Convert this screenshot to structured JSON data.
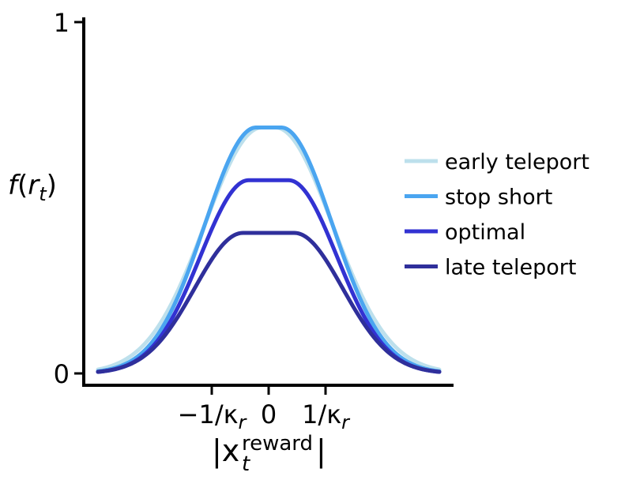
{
  "chart_data": {
    "type": "line",
    "xlabel_main": "|x",
    "xlabel_sub": "t",
    "xlabel_sup": "reward",
    "xlabel_end": "|",
    "ylabel_f": "f",
    "ylabel_open": "(",
    "ylabel_r": "r",
    "ylabel_sub": "t",
    "ylabel_close": ")",
    "xlim": [
      -3.0,
      3.0
    ],
    "ylim": [
      0,
      1
    ],
    "xticks": [
      {
        "value": -1,
        "label": "−1/κ"
      },
      {
        "value": 0,
        "label": "0"
      },
      {
        "value": 1,
        "label": "1/κ"
      }
    ],
    "xtick_subscript": "r",
    "yticks": [
      {
        "value": 0,
        "label": "0"
      },
      {
        "value": 1,
        "label": "1"
      }
    ],
    "grid": false,
    "legend_position": "right",
    "series": [
      {
        "name": "early teleport",
        "color": "#bde0ec",
        "peak": 0.7,
        "plateau_half_width": 0.12,
        "sigma": 1.0
      },
      {
        "name": "stop short",
        "color": "#4aa5f0",
        "peak": 0.7,
        "plateau_half_width": 0.22,
        "sigma": 0.9
      },
      {
        "name": "optimal",
        "color": "#3232d2",
        "peak": 0.55,
        "plateau_half_width": 0.35,
        "sigma": 0.85
      },
      {
        "name": "late teleport",
        "color": "#2f2f9b",
        "peak": 0.4,
        "plateau_half_width": 0.45,
        "sigma": 0.85
      }
    ]
  }
}
